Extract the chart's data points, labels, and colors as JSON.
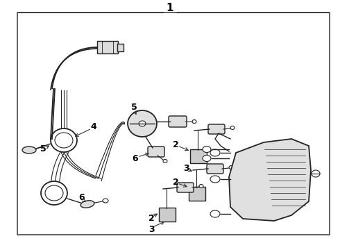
{
  "bg_color": "#ffffff",
  "border_color": "#444444",
  "line_color": "#222222",
  "label_color": "#000000",
  "fig_width": 4.9,
  "fig_height": 3.6,
  "dpi": 100
}
